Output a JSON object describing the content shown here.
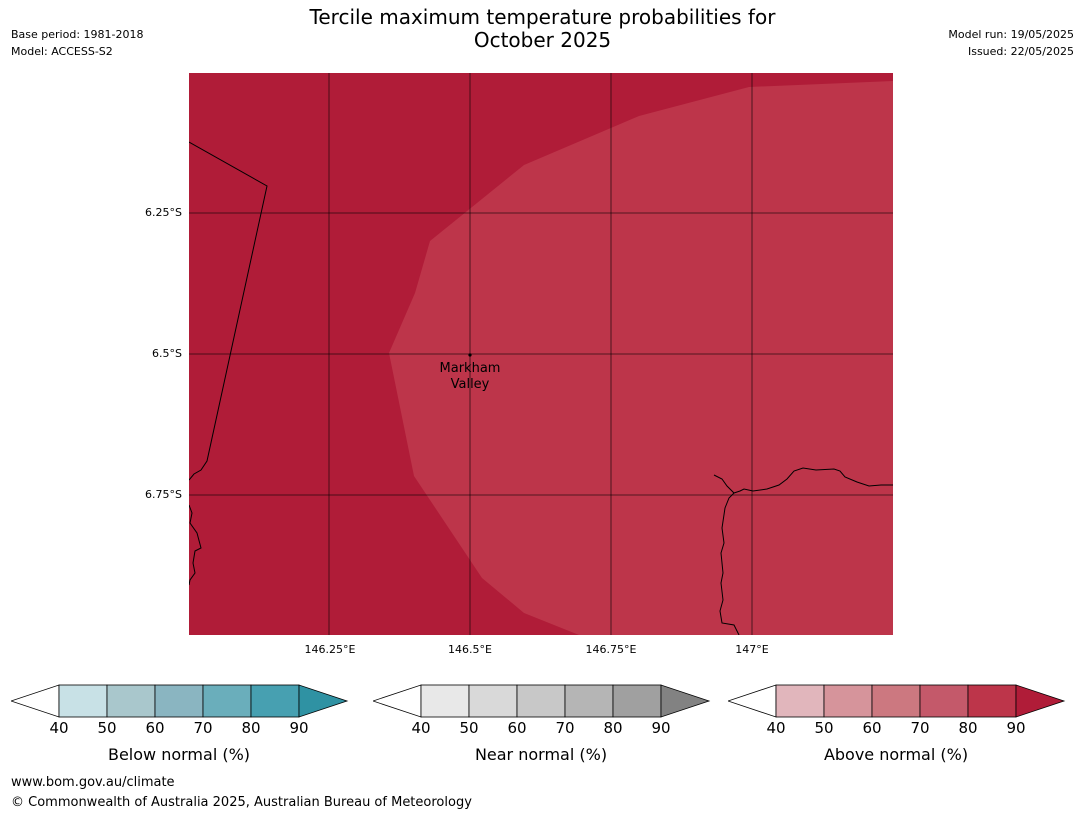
{
  "header": {
    "title_line1": "Tercile maximum temperature probabilities for",
    "title_line2": "October 2025",
    "base_period": "Base period: 1981-2018",
    "model": "Model: ACCESS-S2",
    "model_run": "Model run: 19/05/2025",
    "issued": "Issued: 22/05/2025"
  },
  "map": {
    "lat_labels": [
      "6.25°S",
      "6.5°S",
      "6.75°S"
    ],
    "lon_labels": [
      "146.25°E",
      "146.5°E",
      "146.75°E",
      "147°E"
    ],
    "place": {
      "name_line1": "Markham",
      "name_line2": "Valley"
    },
    "colors": {
      "above_90": "#b01c38",
      "above_80": "#bd354a"
    }
  },
  "colorbars": [
    {
      "label": "Below normal (%)",
      "ticks": [
        "40",
        "50",
        "60",
        "70",
        "80",
        "90"
      ],
      "colors": [
        "#c8e1e6",
        "#a9c7cc",
        "#8ab5c1",
        "#6aaebb",
        "#47a0b1",
        "#2f92a3"
      ]
    },
    {
      "label": "Near normal (%)",
      "ticks": [
        "40",
        "50",
        "60",
        "70",
        "80",
        "90"
      ],
      "colors": [
        "#e8e8e8",
        "#d9d9d9",
        "#c8c8c8",
        "#b5b5b5",
        "#a0a0a0",
        "#828282"
      ]
    },
    {
      "label": "Above normal (%)",
      "ticks": [
        "40",
        "50",
        "60",
        "70",
        "80",
        "90"
      ],
      "colors": [
        "#e1b6bc",
        "#d6949b",
        "#cc7880",
        "#c4596a",
        "#bd354a",
        "#b01c38"
      ]
    }
  ],
  "footer": {
    "url": "www.bom.gov.au/climate",
    "copyright": "© Commonwealth of Australia 2025, Australian Bureau of Meteorology"
  }
}
